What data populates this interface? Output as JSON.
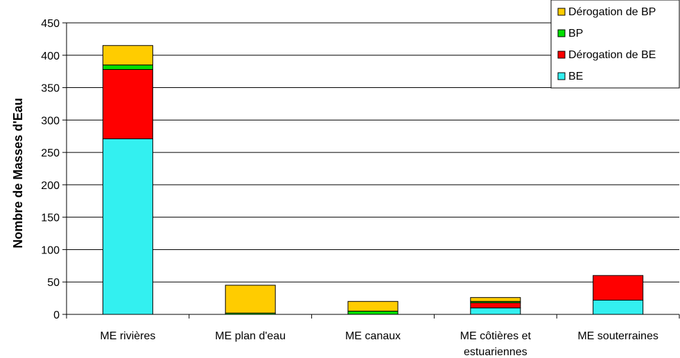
{
  "chart_data": {
    "type": "bar",
    "stacked": true,
    "title": "",
    "xlabel": "",
    "ylabel": "Nombre de Masses d'Eau",
    "ylim": [
      0,
      450
    ],
    "yticks": [
      0,
      50,
      100,
      150,
      200,
      250,
      300,
      350,
      400,
      450
    ],
    "grid": true,
    "legend_position": "top-right",
    "categories": [
      [
        "ME rivières"
      ],
      [
        "ME plan d'eau"
      ],
      [
        "ME canaux"
      ],
      [
        "ME côtières et",
        "estuariennes"
      ],
      [
        "ME souterraines"
      ]
    ],
    "series": [
      {
        "name": "BE",
        "color": "#33f0f0",
        "values": [
          271,
          0,
          0,
          10,
          22
        ]
      },
      {
        "name": "Dérogation de BE",
        "color": "#ff0000",
        "values": [
          107,
          0,
          0,
          8,
          38
        ]
      },
      {
        "name": "BP",
        "color": "#00e000",
        "values": [
          7,
          2,
          5,
          2,
          0
        ]
      },
      {
        "name": "Dérogation de BP",
        "color": "#ffcc00",
        "values": [
          30,
          43,
          15,
          6,
          0
        ]
      }
    ],
    "legend_order": [
      "Dérogation de BP",
      "BP",
      "Dérogation de BE",
      "BE"
    ]
  }
}
